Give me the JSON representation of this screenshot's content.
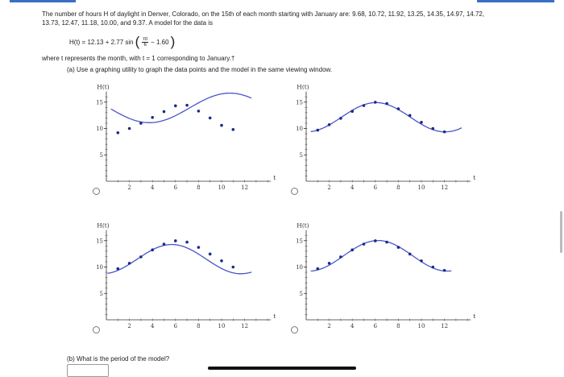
{
  "problem": {
    "line1": "The number of hours H of daylight in Denver, Colorado, on the 15th of each month starting with January are: 9.68, 10.72, 11.92, 13.25, 14.35, 14.97, 14.72,",
    "line2": "13.73, 12.47, 11.18, 10.00, and 9.37. A model for the data is",
    "model_lhs": "H(t) = 12.13 + 2.77 sin",
    "model_frac_num": "πt",
    "model_frac_den": "6",
    "model_tail": "− 1.60",
    "where": "where t represents the month, with t = 1 corresponding to January.†"
  },
  "part_a": {
    "prompt": "(a) Use a graphing utility to graph the data points and the model in the same viewing window."
  },
  "part_b": {
    "prompt": "(b) What is the period of the model?"
  },
  "answer_input": {
    "value": ""
  },
  "colors": {
    "curve": "#4a55c8",
    "points": "#1a2a8a",
    "accent": "#3a6fc4"
  },
  "chart_data": [
    {
      "type": "scatter",
      "option": "A",
      "ylabel": "H(t)",
      "xlabel": "t",
      "xticks": [
        2,
        4,
        6,
        8,
        10,
        12
      ],
      "yticks": [
        5,
        10,
        15
      ],
      "xlim": [
        0,
        14
      ],
      "ylim": [
        0,
        17
      ],
      "points": [
        [
          1,
          9.2
        ],
        [
          2,
          10.0
        ],
        [
          3,
          11.0
        ],
        [
          4,
          12.1
        ],
        [
          5,
          13.2
        ],
        [
          6,
          14.3
        ],
        [
          7,
          14.4
        ],
        [
          8,
          13.3
        ],
        [
          9,
          12.0
        ],
        [
          10,
          10.6
        ],
        [
          11,
          9.8
        ]
      ],
      "curve": {
        "a": 13.9,
        "b": 2.8,
        "w": 0.45,
        "c": 3.25
      },
      "curve_range": [
        0.4,
        12.6
      ],
      "selected": false
    },
    {
      "type": "scatter",
      "option": "B",
      "ylabel": "H(t)",
      "xlabel": "t",
      "xticks": [
        2,
        4,
        6,
        8,
        10,
        12
      ],
      "yticks": [
        5,
        10,
        15
      ],
      "xlim": [
        0,
        14
      ],
      "ylim": [
        0,
        17
      ],
      "points": [
        [
          1,
          9.68
        ],
        [
          2,
          10.72
        ],
        [
          3,
          11.92
        ],
        [
          4,
          13.25
        ],
        [
          5,
          14.35
        ],
        [
          6,
          14.97
        ],
        [
          7,
          14.72
        ],
        [
          8,
          13.73
        ],
        [
          9,
          12.47
        ],
        [
          10,
          11.18
        ],
        [
          11,
          10.0
        ],
        [
          12,
          9.37
        ]
      ],
      "curve": {
        "a": 12.13,
        "b": 2.77,
        "w": 0.5236,
        "c": 1.6
      },
      "curve_range": [
        0.4,
        13.5
      ],
      "selected": false
    },
    {
      "type": "scatter",
      "option": "C",
      "ylabel": "H(t)",
      "xlabel": "t",
      "xticks": [
        2,
        4,
        6,
        8,
        10,
        12
      ],
      "yticks": [
        5,
        10,
        15
      ],
      "xlim": [
        0,
        14
      ],
      "ylim": [
        0,
        17
      ],
      "points": [
        [
          1,
          9.68
        ],
        [
          2,
          10.72
        ],
        [
          3,
          11.92
        ],
        [
          4,
          13.25
        ],
        [
          5,
          14.35
        ],
        [
          6,
          14.97
        ],
        [
          7,
          14.72
        ],
        [
          8,
          13.73
        ],
        [
          9,
          12.47
        ],
        [
          10,
          11.18
        ],
        [
          11,
          10.0
        ]
      ],
      "curve": {
        "a": 11.5,
        "b": 2.77,
        "w": 0.5236,
        "c": 1.4
      },
      "curve_range": [
        0.1,
        12.6
      ],
      "selected": false
    },
    {
      "type": "scatter",
      "option": "D",
      "ylabel": "H(t)",
      "xlabel": "t",
      "xticks": [
        2,
        4,
        6,
        8,
        10,
        12
      ],
      "yticks": [
        5,
        10,
        15
      ],
      "xlim": [
        0,
        14
      ],
      "ylim": [
        0,
        17
      ],
      "points": [
        [
          1,
          9.68
        ],
        [
          2,
          10.72
        ],
        [
          3,
          11.92
        ],
        [
          4,
          13.25
        ],
        [
          5,
          14.35
        ],
        [
          6,
          14.97
        ],
        [
          7,
          14.72
        ],
        [
          8,
          13.73
        ],
        [
          9,
          12.47
        ],
        [
          10,
          11.18
        ],
        [
          11,
          10.0
        ],
        [
          12,
          9.37
        ]
      ],
      "curve": {
        "a": 12.13,
        "b": 2.9,
        "w": 0.5236,
        "c": 1.7
      },
      "curve_range": [
        0.4,
        12.6
      ],
      "selected": false
    }
  ]
}
